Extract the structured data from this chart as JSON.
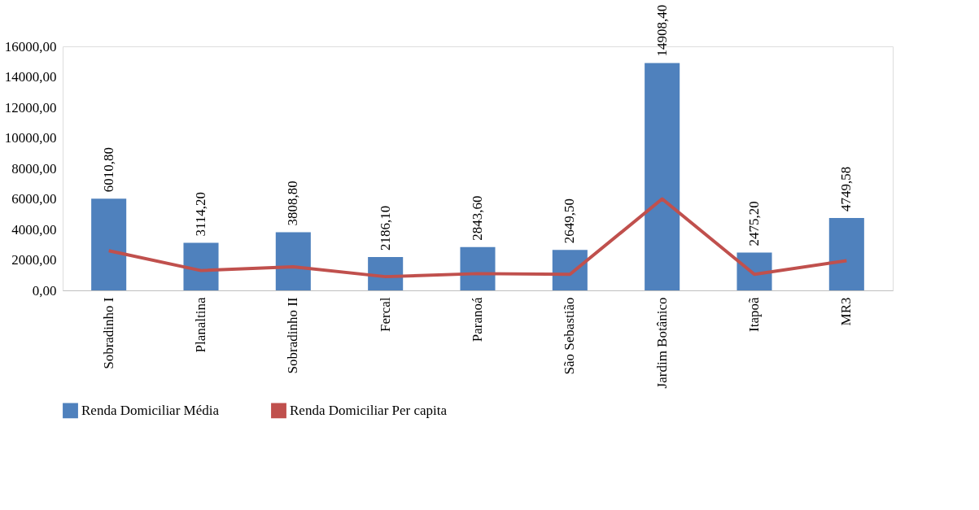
{
  "chart_data": {
    "type": "bar",
    "categories": [
      "Sobradinho I",
      "Planaltina",
      "Sobradinho II",
      "Fercal",
      "Paranoá",
      "São Sebastião",
      "Jardim Botânico",
      "Itapoã",
      "MR3"
    ],
    "series": [
      {
        "name": "Renda Domiciliar Média",
        "color": "#4f81bd",
        "values": [
          6010.8,
          3114.2,
          3808.8,
          2186.1,
          2843.6,
          2649.5,
          14908.4,
          2475.2,
          4749.58
        ],
        "value_labels": [
          "6010,80",
          "3114,20",
          "3808,80",
          "2186,10",
          "2843,60",
          "2649,50",
          "14908,40",
          "2475,20",
          "4749,58"
        ]
      },
      {
        "name": "Renda Domiciliar Per capita",
        "type": "line",
        "color": "#c0504d",
        "values": [
          2600,
          1300,
          1550,
          900,
          1100,
          1050,
          6000,
          1050,
          1950
        ]
      }
    ],
    "ylim": [
      0,
      16000
    ],
    "yticks": [
      {
        "value": 0,
        "label": "0,00"
      },
      {
        "value": 2000,
        "label": "2000,00"
      },
      {
        "value": 4000,
        "label": "4000,00"
      },
      {
        "value": 6000,
        "label": "6000,00"
      },
      {
        "value": 8000,
        "label": "8000,00"
      },
      {
        "value": 10000,
        "label": "10000,00"
      },
      {
        "value": 12000,
        "label": "12000,00"
      },
      {
        "value": 14000,
        "label": "14000,00"
      },
      {
        "value": 16000,
        "label": "16000,00"
      }
    ],
    "grid": false,
    "legend": "bottom"
  }
}
